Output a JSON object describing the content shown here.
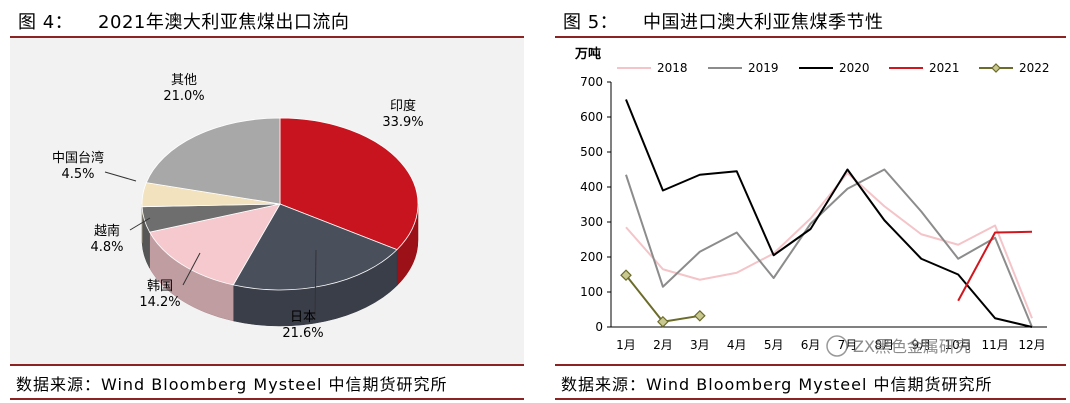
{
  "left_panel": {
    "title": "图 4：    2021年澳大利亚焦煤出口流向",
    "footer": "数据来源：Wind Bloomberg Mysteel 中信期货研究所"
  },
  "right_panel": {
    "title": "图 5：    中国进口澳大利亚焦煤季节性",
    "footer": "数据来源：Wind Bloomberg Mysteel 中信期货研究所",
    "watermark": "ZX黑色金属研究"
  },
  "chart_data": [
    {
      "type": "pie",
      "title": "2021年澳大利亚焦煤出口流向",
      "slices": [
        {
          "label": "印度",
          "pct_label": "33.9%",
          "value": 33.9,
          "color": "#c8141e"
        },
        {
          "label": "日本",
          "pct_label": "21.6%",
          "value": 21.6,
          "color": "#4a4f5c"
        },
        {
          "label": "韩国",
          "pct_label": "14.2%",
          "value": 14.2,
          "color": "#f6c9cf"
        },
        {
          "label": "越南",
          "pct_label": "4.8%",
          "value": 4.8,
          "color": "#6e6e6e"
        },
        {
          "label": "中国台湾",
          "pct_label": "4.5%",
          "value": 4.5,
          "color": "#f2e2bd"
        },
        {
          "label": "其他",
          "pct_label": "21.0%",
          "value": 21.0,
          "color": "#a8a8a8"
        }
      ]
    },
    {
      "type": "line",
      "title": "中国进口澳大利亚焦煤季节性",
      "ylabel": "万吨",
      "ylim": [
        0,
        700
      ],
      "yticks": [
        0,
        100,
        200,
        300,
        400,
        500,
        600,
        700
      ],
      "categories": [
        "1月",
        "2月",
        "3月",
        "4月",
        "5月",
        "6月",
        "7月",
        "8月",
        "9月",
        "10月",
        "11月",
        "12月"
      ],
      "series": [
        {
          "name": "2018",
          "color": "#f4c4c8",
          "width": 2,
          "values": [
            285,
            165,
            135,
            155,
            210,
            310,
            440,
            345,
            265,
            235,
            290,
            25
          ],
          "marker": false
        },
        {
          "name": "2019",
          "color": "#8c8c8c",
          "width": 2,
          "values": [
            435,
            115,
            215,
            270,
            140,
            295,
            395,
            450,
            330,
            195,
            255,
            0
          ],
          "marker": false
        },
        {
          "name": "2020",
          "color": "#000000",
          "width": 2,
          "values": [
            650,
            390,
            435,
            445,
            205,
            280,
            450,
            305,
            195,
            150,
            25,
            0
          ],
          "marker": false
        },
        {
          "name": "2021",
          "color": "#d2161e",
          "width": 2,
          "values": [
            null,
            null,
            null,
            null,
            null,
            null,
            null,
            null,
            null,
            75,
            270,
            272
          ],
          "marker": false
        },
        {
          "name": "2022",
          "color": "#6b6b2a",
          "width": 2,
          "values": [
            148,
            15,
            32,
            null,
            null,
            null,
            null,
            null,
            null,
            null,
            null,
            null
          ],
          "marker": true
        }
      ]
    }
  ]
}
